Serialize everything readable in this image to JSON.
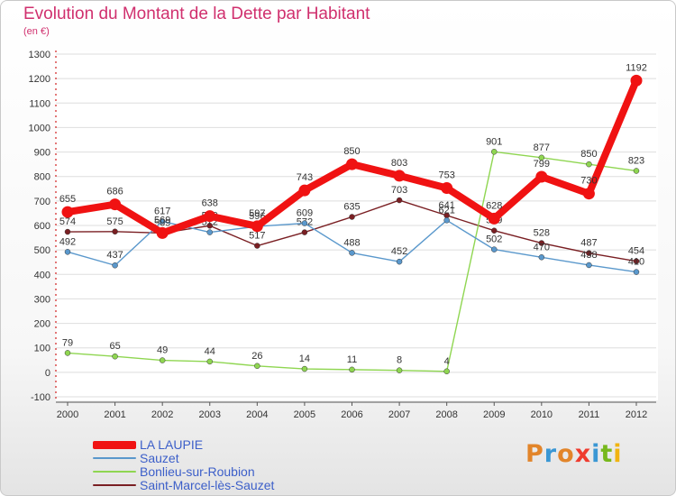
{
  "title": "Evolution du Montant de la Dette par Habitant",
  "subtitle": "(en €)",
  "logo": {
    "letters": [
      "P",
      "r",
      "o",
      "x",
      "i",
      "t",
      "i"
    ],
    "colors": [
      "#e2852a",
      "#3a97d4",
      "#e2852a",
      "#ef3b2e",
      "#3a97d4",
      "#77b81c",
      "#f1b410"
    ]
  },
  "colors": {
    "title": "#d0306e",
    "legend_text": "#3c5fc9",
    "axis_text": "#333333",
    "grid": "#dedede"
  },
  "chart_data": {
    "type": "line",
    "title": "Evolution du Montant de la Dette par Habitant",
    "ylabel": "(en €)",
    "x": [
      "2000",
      "2001",
      "2002",
      "2003",
      "2004",
      "2005",
      "2006",
      "2007",
      "2008",
      "2009",
      "2010",
      "2011",
      "2012"
    ],
    "ylim": [
      -100,
      1300
    ],
    "yticks": [
      -100,
      0,
      100,
      200,
      300,
      400,
      500,
      600,
      700,
      800,
      900,
      1000,
      1100,
      1200,
      1300
    ],
    "grid": true,
    "legend_position": "bottom-left",
    "series": [
      {
        "name": "Saint-Marcel-lès-Sauzet",
        "color": "#7a1f23",
        "values": [
          574,
          575,
          569,
          599,
          517,
          572,
          635,
          703,
          641,
          579,
          528,
          487,
          454
        ],
        "labels": [
          "574",
          "575",
          "569",
          "599",
          "517",
          "572",
          "635",
          "703",
          "641",
          "579",
          "528",
          "487",
          "454"
        ]
      },
      {
        "name": "Bonlieu-sur-Roubion",
        "color": "#8fd651",
        "values": [
          79,
          65,
          49,
          44,
          26,
          14,
          11,
          8,
          4,
          901,
          877,
          850,
          823
        ],
        "labels": [
          "79",
          "65",
          "49",
          "44",
          "26",
          "14",
          "11",
          "8",
          "4",
          "901",
          "877",
          "850",
          "823"
        ]
      },
      {
        "name": "Sauzet",
        "color": "#5a98cc",
        "values": [
          492,
          437,
          617,
          572,
          596,
          609,
          488,
          452,
          621,
          502,
          470,
          438,
          410
        ],
        "labels": [
          "492",
          "437",
          "617",
          "572",
          "596",
          "609",
          "488",
          "452",
          "621",
          "502",
          "470",
          "438",
          "410"
        ]
      },
      {
        "name": "LA LAUPIE",
        "color": "#f01212",
        "values": [
          655,
          686,
          569,
          638,
          597,
          743,
          850,
          803,
          753,
          628,
          799,
          730,
          1192
        ],
        "labels": [
          "655",
          "686",
          "569",
          "638",
          "597",
          "743",
          "850",
          "803",
          "753",
          "628",
          "799",
          "730",
          "1192"
        ]
      }
    ]
  }
}
